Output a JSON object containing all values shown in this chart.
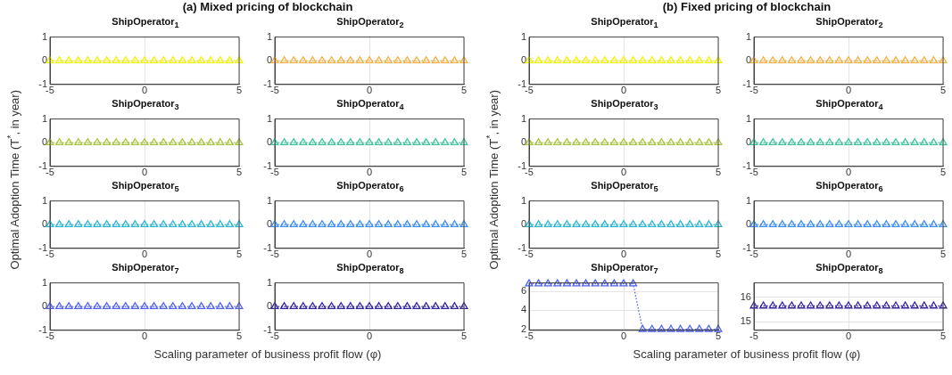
{
  "chart_data": [
    {
      "type": "line",
      "title": "ShipOperator$_{1}$",
      "annotations": [
        "(a) Mixed pricing of blockchain"
      ],
      "ylabel": "Optimal Adoption Time (T$^{*}$, in year)",
      "x": [
        -5,
        -4.5,
        -4,
        -3.5,
        -3,
        -2.5,
        -2,
        -1.5,
        -1,
        -0.5,
        0,
        0.5,
        1,
        1.5,
        2,
        2.5,
        3,
        3.5,
        4,
        4.5,
        5
      ],
      "series": [
        {
          "color": "#f2f200",
          "values": [
            0,
            0,
            0,
            0,
            0,
            0,
            0,
            0,
            0,
            0,
            0,
            0,
            0,
            0,
            0,
            0,
            0,
            0,
            0,
            0,
            0
          ]
        }
      ],
      "xlim": [
        -5,
        5
      ],
      "xticks": [
        -5,
        0,
        5
      ],
      "ylim": [
        -1,
        1
      ],
      "yticks": [
        -1,
        0,
        1
      ],
      "grid": true,
      "marker": "triangle",
      "line_style": "dotted"
    },
    {
      "type": "line",
      "title": "ShipOperator$_{2}$",
      "x": [
        -5,
        -4.5,
        -4,
        -3.5,
        -3,
        -2.5,
        -2,
        -1.5,
        -1,
        -0.5,
        0,
        0.5,
        1,
        1.5,
        2,
        2.5,
        3,
        3.5,
        4,
        4.5,
        5
      ],
      "series": [
        {
          "color": "#f5b040",
          "values": [
            0,
            0,
            0,
            0,
            0,
            0,
            0,
            0,
            0,
            0,
            0,
            0,
            0,
            0,
            0,
            0,
            0,
            0,
            0,
            0,
            0
          ]
        }
      ],
      "xlim": [
        -5,
        5
      ],
      "xticks": [
        -5,
        0,
        5
      ],
      "ylim": [
        -1,
        1
      ],
      "yticks": [
        -1,
        0,
        1
      ],
      "grid": true,
      "marker": "triangle",
      "line_style": "dotted"
    },
    {
      "type": "line",
      "title": "ShipOperator$_{3}$",
      "x": [
        -5,
        -4.5,
        -4,
        -3.5,
        -3,
        -2.5,
        -2,
        -1.5,
        -1,
        -0.5,
        0,
        0.5,
        1,
        1.5,
        2,
        2.5,
        3,
        3.5,
        4,
        4.5,
        5
      ],
      "series": [
        {
          "color": "#a8c43a",
          "values": [
            0,
            0,
            0,
            0,
            0,
            0,
            0,
            0,
            0,
            0,
            0,
            0,
            0,
            0,
            0,
            0,
            0,
            0,
            0,
            0,
            0
          ]
        }
      ],
      "xlim": [
        -5,
        5
      ],
      "xticks": [
        -5,
        0,
        5
      ],
      "ylim": [
        -1,
        1
      ],
      "yticks": [
        -1,
        0,
        1
      ],
      "grid": true,
      "marker": "triangle",
      "line_style": "dotted"
    },
    {
      "type": "line",
      "title": "ShipOperator$_{4}$",
      "x": [
        -5,
        -4.5,
        -4,
        -3.5,
        -3,
        -2.5,
        -2,
        -1.5,
        -1,
        -0.5,
        0,
        0.5,
        1,
        1.5,
        2,
        2.5,
        3,
        3.5,
        4,
        4.5,
        5
      ],
      "series": [
        {
          "color": "#3cc39e",
          "values": [
            0,
            0,
            0,
            0,
            0,
            0,
            0,
            0,
            0,
            0,
            0,
            0,
            0,
            0,
            0,
            0,
            0,
            0,
            0,
            0,
            0
          ]
        }
      ],
      "xlim": [
        -5,
        5
      ],
      "xticks": [
        -5,
        0,
        5
      ],
      "ylim": [
        -1,
        1
      ],
      "yticks": [
        -1,
        0,
        1
      ],
      "grid": true,
      "marker": "triangle",
      "line_style": "dotted"
    },
    {
      "type": "line",
      "title": "ShipOperator$_{5}$",
      "x": [
        -5,
        -4.5,
        -4,
        -3.5,
        -3,
        -2.5,
        -2,
        -1.5,
        -1,
        -0.5,
        0,
        0.5,
        1,
        1.5,
        2,
        2.5,
        3,
        3.5,
        4,
        4.5,
        5
      ],
      "series": [
        {
          "color": "#2ab5d2",
          "values": [
            0,
            0,
            0,
            0,
            0,
            0,
            0,
            0,
            0,
            0,
            0,
            0,
            0,
            0,
            0,
            0,
            0,
            0,
            0,
            0,
            0
          ]
        }
      ],
      "xlim": [
        -5,
        5
      ],
      "xticks": [
        -5,
        0,
        5
      ],
      "ylim": [
        -1,
        1
      ],
      "yticks": [
        -1,
        0,
        1
      ],
      "grid": true,
      "marker": "triangle",
      "line_style": "dotted"
    },
    {
      "type": "line",
      "title": "ShipOperator$_{6}$",
      "x": [
        -5,
        -4.5,
        -4,
        -3.5,
        -3,
        -2.5,
        -2,
        -1.5,
        -1,
        -0.5,
        0,
        0.5,
        1,
        1.5,
        2,
        2.5,
        3,
        3.5,
        4,
        4.5,
        5
      ],
      "series": [
        {
          "color": "#3a8cf0",
          "values": [
            0,
            0,
            0,
            0,
            0,
            0,
            0,
            0,
            0,
            0,
            0,
            0,
            0,
            0,
            0,
            0,
            0,
            0,
            0,
            0,
            0
          ]
        }
      ],
      "xlim": [
        -5,
        5
      ],
      "xticks": [
        -5,
        0,
        5
      ],
      "ylim": [
        -1,
        1
      ],
      "yticks": [
        -1,
        0,
        1
      ],
      "grid": true,
      "marker": "triangle",
      "line_style": "dotted"
    },
    {
      "type": "line",
      "title": "ShipOperator$_{7}$",
      "xlabel": "Scaling parameter of business profit flow (φ)",
      "x": [
        -5,
        -4.5,
        -4,
        -3.5,
        -3,
        -2.5,
        -2,
        -1.5,
        -1,
        -0.5,
        0,
        0.5,
        1,
        1.5,
        2,
        2.5,
        3,
        3.5,
        4,
        4.5,
        5
      ],
      "series": [
        {
          "color": "#5060f5",
          "values": [
            0,
            0,
            0,
            0,
            0,
            0,
            0,
            0,
            0,
            0,
            0,
            0,
            0,
            0,
            0,
            0,
            0,
            0,
            0,
            0,
            0
          ]
        }
      ],
      "xlim": [
        -5,
        5
      ],
      "xticks": [
        -5,
        0,
        5
      ],
      "ylim": [
        -1,
        1
      ],
      "yticks": [
        -1,
        0,
        1
      ],
      "grid": true,
      "marker": "triangle",
      "line_style": "dotted"
    },
    {
      "type": "line",
      "title": "ShipOperator$_{8}$",
      "x": [
        -5,
        -4.5,
        -4,
        -3.5,
        -3,
        -2.5,
        -2,
        -1.5,
        -1,
        -0.5,
        0,
        0.5,
        1,
        1.5,
        2,
        2.5,
        3,
        3.5,
        4,
        4.5,
        5
      ],
      "series": [
        {
          "color": "#3222a0",
          "values": [
            0,
            0,
            0,
            0,
            0,
            0,
            0,
            0,
            0,
            0,
            0,
            0,
            0,
            0,
            0,
            0,
            0,
            0,
            0,
            0,
            0
          ]
        }
      ],
      "xlim": [
        -5,
        5
      ],
      "xticks": [
        -5,
        0,
        5
      ],
      "ylim": [
        -1,
        1
      ],
      "yticks": [
        -1,
        0,
        1
      ],
      "grid": true,
      "marker": "triangle",
      "line_style": "dotted"
    },
    {
      "type": "line",
      "title": "ShipOperator$_{1}$",
      "annotations": [
        "(b) Fixed pricing of blockchain"
      ],
      "ylabel": "Optimal Adoption Time (T$^{*}$, in year)",
      "x": [
        -5,
        -4.5,
        -4,
        -3.5,
        -3,
        -2.5,
        -2,
        -1.5,
        -1,
        -0.5,
        0,
        0.5,
        1,
        1.5,
        2,
        2.5,
        3,
        3.5,
        4,
        4.5,
        5
      ],
      "series": [
        {
          "color": "#f2f200",
          "values": [
            0,
            0,
            0,
            0,
            0,
            0,
            0,
            0,
            0,
            0,
            0,
            0,
            0,
            0,
            0,
            0,
            0,
            0,
            0,
            0,
            0
          ]
        }
      ],
      "xlim": [
        -5,
        5
      ],
      "xticks": [
        -5,
        0,
        5
      ],
      "ylim": [
        -1,
        1
      ],
      "yticks": [
        -1,
        0,
        1
      ],
      "grid": true,
      "marker": "triangle",
      "line_style": "dotted"
    },
    {
      "type": "line",
      "title": "ShipOperator$_{2}$",
      "x": [
        -5,
        -4.5,
        -4,
        -3.5,
        -3,
        -2.5,
        -2,
        -1.5,
        -1,
        -0.5,
        0,
        0.5,
        1,
        1.5,
        2,
        2.5,
        3,
        3.5,
        4,
        4.5,
        5
      ],
      "series": [
        {
          "color": "#f5b040",
          "values": [
            0,
            0,
            0,
            0,
            0,
            0,
            0,
            0,
            0,
            0,
            0,
            0,
            0,
            0,
            0,
            0,
            0,
            0,
            0,
            0,
            0
          ]
        }
      ],
      "xlim": [
        -5,
        5
      ],
      "xticks": [
        -5,
        0,
        5
      ],
      "ylim": [
        -1,
        1
      ],
      "yticks": [
        -1,
        0,
        1
      ],
      "grid": true,
      "marker": "triangle",
      "line_style": "dotted"
    },
    {
      "type": "line",
      "title": "ShipOperator$_{3}$",
      "x": [
        -5,
        -4.5,
        -4,
        -3.5,
        -3,
        -2.5,
        -2,
        -1.5,
        -1,
        -0.5,
        0,
        0.5,
        1,
        1.5,
        2,
        2.5,
        3,
        3.5,
        4,
        4.5,
        5
      ],
      "series": [
        {
          "color": "#a8c43a",
          "values": [
            0,
            0,
            0,
            0,
            0,
            0,
            0,
            0,
            0,
            0,
            0,
            0,
            0,
            0,
            0,
            0,
            0,
            0,
            0,
            0,
            0
          ]
        }
      ],
      "xlim": [
        -5,
        5
      ],
      "xticks": [
        -5,
        0,
        5
      ],
      "ylim": [
        -1,
        1
      ],
      "yticks": [
        -1,
        0,
        1
      ],
      "grid": true,
      "marker": "triangle",
      "line_style": "dotted"
    },
    {
      "type": "line",
      "title": "ShipOperator$_{4}$",
      "x": [
        -5,
        -4.5,
        -4,
        -3.5,
        -3,
        -2.5,
        -2,
        -1.5,
        -1,
        -0.5,
        0,
        0.5,
        1,
        1.5,
        2,
        2.5,
        3,
        3.5,
        4,
        4.5,
        5
      ],
      "series": [
        {
          "color": "#3cc39e",
          "values": [
            0,
            0,
            0,
            0,
            0,
            0,
            0,
            0,
            0,
            0,
            0,
            0,
            0,
            0,
            0,
            0,
            0,
            0,
            0,
            0,
            0
          ]
        }
      ],
      "xlim": [
        -5,
        5
      ],
      "xticks": [
        -5,
        0,
        5
      ],
      "ylim": [
        -1,
        1
      ],
      "yticks": [
        -1,
        0,
        1
      ],
      "grid": true,
      "marker": "triangle",
      "line_style": "dotted"
    },
    {
      "type": "line",
      "title": "ShipOperator$_{5}$",
      "x": [
        -5,
        -4.5,
        -4,
        -3.5,
        -3,
        -2.5,
        -2,
        -1.5,
        -1,
        -0.5,
        0,
        0.5,
        1,
        1.5,
        2,
        2.5,
        3,
        3.5,
        4,
        4.5,
        5
      ],
      "series": [
        {
          "color": "#2ab5d2",
          "values": [
            0,
            0,
            0,
            0,
            0,
            0,
            0,
            0,
            0,
            0,
            0,
            0,
            0,
            0,
            0,
            0,
            0,
            0,
            0,
            0,
            0
          ]
        }
      ],
      "xlim": [
        -5,
        5
      ],
      "xticks": [
        -5,
        0,
        5
      ],
      "ylim": [
        -1,
        1
      ],
      "yticks": [
        -1,
        0,
        1
      ],
      "grid": true,
      "marker": "triangle",
      "line_style": "dotted"
    },
    {
      "type": "line",
      "title": "ShipOperator$_{6}$",
      "x": [
        -5,
        -4.5,
        -4,
        -3.5,
        -3,
        -2.5,
        -2,
        -1.5,
        -1,
        -0.5,
        0,
        0.5,
        1,
        1.5,
        2,
        2.5,
        3,
        3.5,
        4,
        4.5,
        5
      ],
      "series": [
        {
          "color": "#3a8cf0",
          "values": [
            0,
            0,
            0,
            0,
            0,
            0,
            0,
            0,
            0,
            0,
            0,
            0,
            0,
            0,
            0,
            0,
            0,
            0,
            0,
            0,
            0
          ]
        }
      ],
      "xlim": [
        -5,
        5
      ],
      "xticks": [
        -5,
        0,
        5
      ],
      "ylim": [
        -1,
        1
      ],
      "yticks": [
        -1,
        0,
        1
      ],
      "grid": true,
      "marker": "triangle",
      "line_style": "dotted"
    },
    {
      "type": "line",
      "title": "ShipOperator$_{7}$",
      "xlabel": "Scaling parameter of business profit flow (φ)",
      "x": [
        -5,
        -4.5,
        -4,
        -3.5,
        -3,
        -2.5,
        -2,
        -1.5,
        -1,
        -0.5,
        0,
        0.5,
        1,
        1.5,
        2,
        2.5,
        3,
        3.5,
        4,
        4.5,
        5
      ],
      "series": [
        {
          "color": "#5060f5",
          "values": [
            6.8,
            6.8,
            6.8,
            6.8,
            6.8,
            6.8,
            6.8,
            6.8,
            6.8,
            6.8,
            6.8,
            6.8,
            2,
            2,
            2,
            2,
            2,
            2,
            2,
            2,
            2
          ]
        }
      ],
      "xlim": [
        -5,
        5
      ],
      "xticks": [
        -5,
        0,
        5
      ],
      "ylim": [
        1.9,
        6.9
      ],
      "yticks": [
        2,
        4,
        6
      ],
      "grid": true,
      "marker": "triangle",
      "line_style": "dotted"
    },
    {
      "type": "line",
      "title": "ShipOperator$_{8}$",
      "x": [
        -5,
        -4.5,
        -4,
        -3.5,
        -3,
        -2.5,
        -2,
        -1.5,
        -1,
        -0.5,
        0,
        0.5,
        1,
        1.5,
        2,
        2.5,
        3,
        3.5,
        4,
        4.5,
        5
      ],
      "series": [
        {
          "color": "#3222a0",
          "values": [
            15.65,
            15.65,
            15.65,
            15.65,
            15.65,
            15.65,
            15.65,
            15.65,
            15.65,
            15.65,
            15.65,
            15.65,
            15.65,
            15.65,
            15.65,
            15.65,
            15.65,
            15.65,
            15.65,
            15.65,
            15.65
          ]
        }
      ],
      "xlim": [
        -5,
        5
      ],
      "xticks": [
        -5,
        0,
        5
      ],
      "ylim": [
        14.65,
        16.6
      ],
      "yticks": [
        15,
        16
      ],
      "grid": true,
      "marker": "triangle",
      "line_style": "dotted"
    }
  ]
}
